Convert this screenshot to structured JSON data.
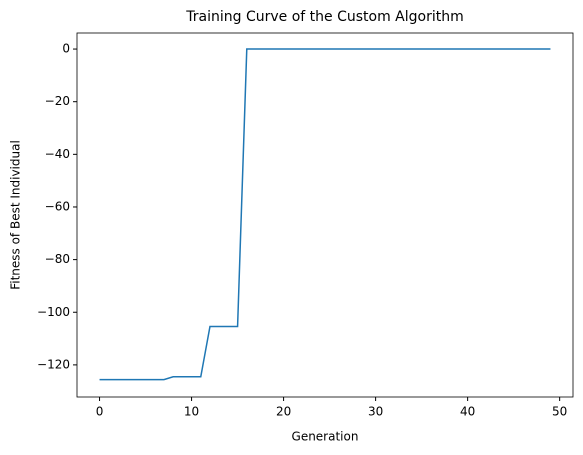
{
  "chart_data": {
    "type": "line",
    "title": "Training Curve of the Custom Algorithm",
    "x_label": "Generation",
    "y_label": "Fitness of Best Individual",
    "x": [
      0,
      1,
      2,
      3,
      4,
      5,
      6,
      7,
      8,
      9,
      10,
      11,
      12,
      13,
      14,
      15,
      16,
      17,
      18,
      19,
      20,
      21,
      22,
      23,
      24,
      25,
      26,
      27,
      28,
      29,
      30,
      31,
      32,
      33,
      34,
      35,
      36,
      37,
      38,
      39,
      40,
      41,
      42,
      43,
      44,
      45,
      46,
      47,
      48,
      49
    ],
    "series": [
      {
        "color": "#1f77b4",
        "values": [
          -125.6,
          -125.6,
          -125.6,
          -125.6,
          -125.6,
          -125.6,
          -125.6,
          -125.6,
          -124.5,
          -124.5,
          -124.5,
          -124.5,
          -105.4,
          -105.4,
          -105.4,
          -105.4,
          0,
          0,
          0,
          0,
          0,
          0,
          0,
          0,
          0,
          0,
          0,
          0,
          0,
          0,
          0,
          0,
          0,
          0,
          0,
          0,
          0,
          0,
          0,
          0,
          0,
          0,
          0,
          0,
          0,
          0,
          0,
          0,
          0,
          0
        ]
      }
    ],
    "xlim": [
      -2.45,
      51.45
    ],
    "xticks": [
      0,
      10,
      20,
      30,
      40,
      50
    ],
    "ylim": [
      -132.2,
      6.1
    ],
    "yticks": [
      {
        "value": -120,
        "label": "−120"
      },
      {
        "value": -100,
        "label": "−100"
      },
      {
        "value": -80,
        "label": "−80"
      },
      {
        "value": -60,
        "label": "−60"
      },
      {
        "value": -40,
        "label": "−40"
      },
      {
        "value": -20,
        "label": "−20"
      },
      0
    ],
    "grid": false
  }
}
